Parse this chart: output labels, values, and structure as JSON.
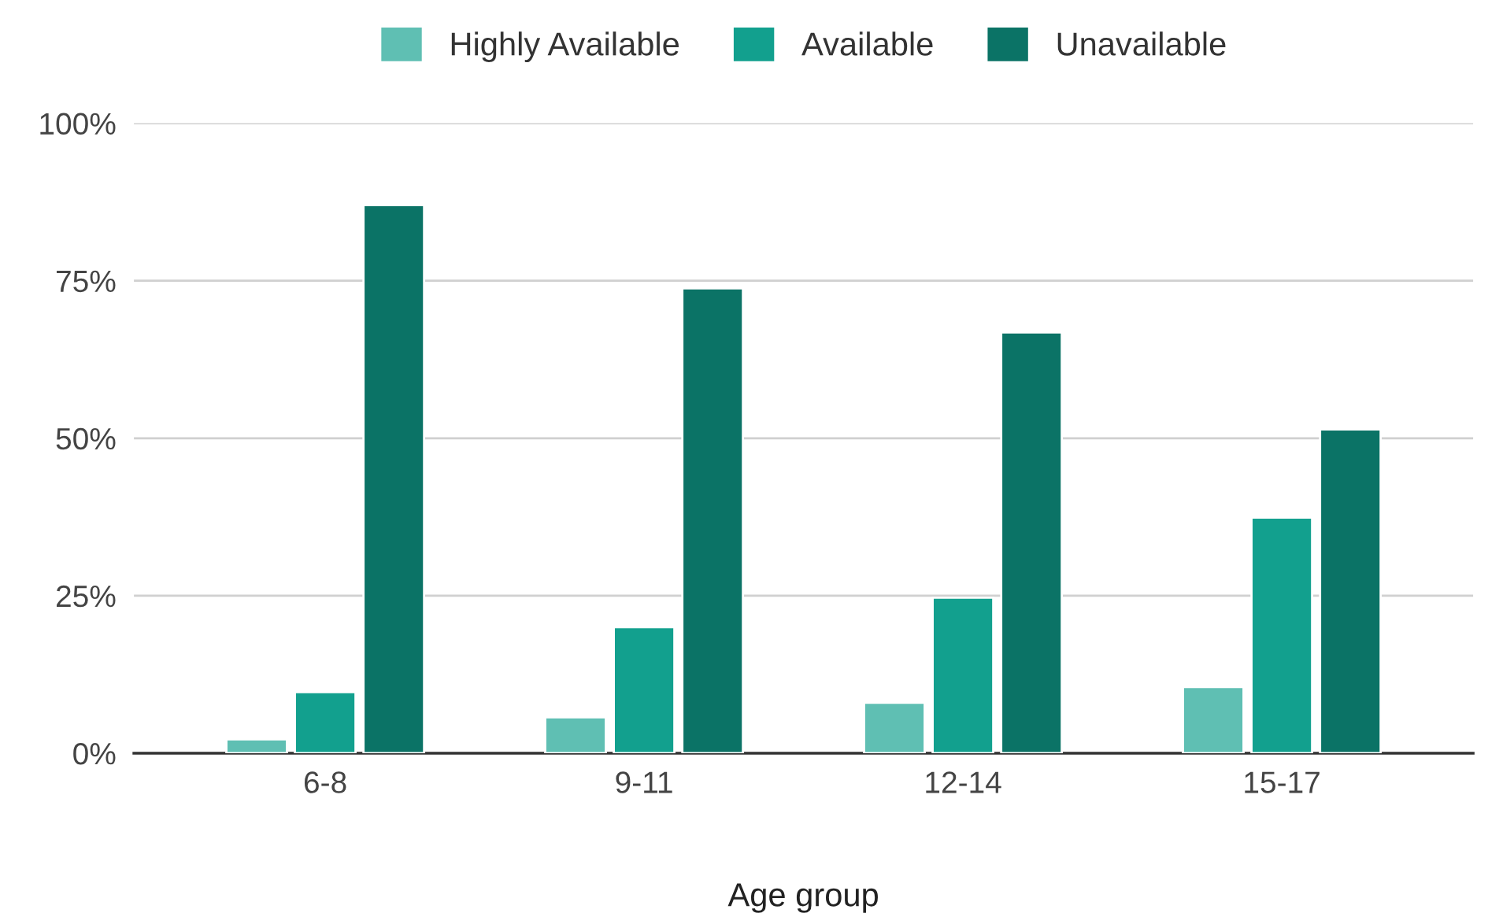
{
  "chart_data": {
    "type": "bar",
    "xlabel": "Age group",
    "categories": [
      "6-8",
      "9-11",
      "12-14",
      "15-17"
    ],
    "series": [
      {
        "name": "Highly Available",
        "color": "#5fbfb3",
        "values": [
          2.2,
          5.7,
          8,
          10.5
        ]
      },
      {
        "name": "Available",
        "color": "#12a08e",
        "values": [
          9.7,
          20,
          24.7,
          37.4
        ]
      },
      {
        "name": "Unavailable",
        "color": "#0b7366",
        "values": [
          87,
          73.8,
          66.8,
          51.4
        ]
      }
    ],
    "ylim": [
      0,
      100
    ],
    "yticks": [
      {
        "value": 0,
        "label": "0%"
      },
      {
        "value": 25,
        "label": "25%"
      },
      {
        "value": 50,
        "label": "50%"
      },
      {
        "value": 75,
        "label": "75%"
      },
      {
        "value": 100,
        "label": "100%"
      }
    ],
    "grid": "y",
    "legend": "top"
  }
}
